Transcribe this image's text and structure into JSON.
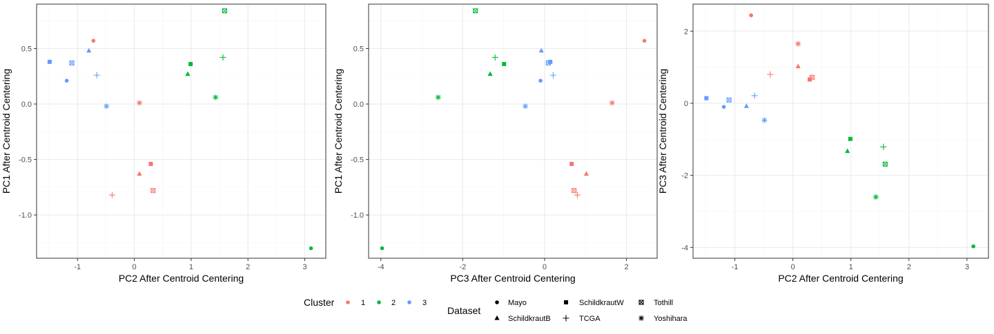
{
  "colors": {
    "cluster_1": "#F8766D",
    "cluster_2": "#00BA38",
    "cluster_3": "#619CFF",
    "grid_major": "#EBEBEB",
    "grid_minor": "#F5F5F5",
    "panel_border": "#333333",
    "axis_text": "#4D4D4D"
  },
  "chart_data": [
    {
      "type": "scatter",
      "title": "",
      "xlabel": "PC2 After Centroid Centering",
      "ylabel": "PC1 After Centroid Centering",
      "xlim": [
        -1.72,
        3.37
      ],
      "ylim": [
        -1.39,
        0.9
      ],
      "xticks": [
        -1,
        0,
        1,
        2,
        3
      ],
      "xtick_labels": [
        "-1",
        "0",
        "1",
        "2",
        "3"
      ],
      "yticks": [
        -1.0,
        -0.5,
        0.0,
        0.5
      ],
      "ytick_labels": [
        "-1.0",
        "-0.5",
        "0.0",
        "0.5"
      ],
      "grid": true,
      "points": [
        {
          "x": -0.72,
          "y": 0.57,
          "cluster": "1",
          "dataset": "Mayo"
        },
        {
          "x": 0.09,
          "y": -0.63,
          "cluster": "1",
          "dataset": "SchildkrautB"
        },
        {
          "x": 0.29,
          "y": -0.54,
          "cluster": "1",
          "dataset": "SchildkrautW"
        },
        {
          "x": -0.39,
          "y": -0.82,
          "cluster": "1",
          "dataset": "TCGA"
        },
        {
          "x": 0.33,
          "y": -0.78,
          "cluster": "1",
          "dataset": "Tothill"
        },
        {
          "x": 0.09,
          "y": 0.01,
          "cluster": "1",
          "dataset": "Yoshihara"
        },
        {
          "x": 3.11,
          "y": -1.3,
          "cluster": "2",
          "dataset": "Mayo"
        },
        {
          "x": 0.94,
          "y": 0.27,
          "cluster": "2",
          "dataset": "SchildkrautB"
        },
        {
          "x": 0.99,
          "y": 0.36,
          "cluster": "2",
          "dataset": "SchildkrautW"
        },
        {
          "x": 1.56,
          "y": 0.42,
          "cluster": "2",
          "dataset": "TCGA"
        },
        {
          "x": 1.59,
          "y": 0.84,
          "cluster": "2",
          "dataset": "Tothill"
        },
        {
          "x": 1.43,
          "y": 0.06,
          "cluster": "2",
          "dataset": "Yoshihara"
        },
        {
          "x": -1.19,
          "y": 0.21,
          "cluster": "3",
          "dataset": "Mayo"
        },
        {
          "x": -0.8,
          "y": 0.48,
          "cluster": "3",
          "dataset": "SchildkrautB"
        },
        {
          "x": -1.49,
          "y": 0.38,
          "cluster": "3",
          "dataset": "SchildkrautW"
        },
        {
          "x": -0.66,
          "y": 0.26,
          "cluster": "3",
          "dataset": "TCGA"
        },
        {
          "x": -1.1,
          "y": 0.37,
          "cluster": "3",
          "dataset": "Tothill"
        },
        {
          "x": -0.49,
          "y": -0.02,
          "cluster": "3",
          "dataset": "Yoshihara"
        }
      ]
    },
    {
      "type": "scatter",
      "title": "",
      "xlabel": "PC3 After Centroid Centering",
      "ylabel": "PC1 After Centroid Centering",
      "xlim": [
        -4.3,
        2.75
      ],
      "ylim": [
        -1.39,
        0.9
      ],
      "xticks": [
        -4,
        -2,
        0,
        2
      ],
      "xtick_labels": [
        "-4",
        "-2",
        "0",
        "2"
      ],
      "yticks": [
        -1.0,
        -0.5,
        0.0,
        0.5
      ],
      "ytick_labels": [
        "-1.0",
        "-0.5",
        "0.0",
        "0.5"
      ],
      "grid": true,
      "points": [
        {
          "x": 2.44,
          "y": 0.57,
          "cluster": "1",
          "dataset": "Mayo"
        },
        {
          "x": 1.02,
          "y": -0.63,
          "cluster": "1",
          "dataset": "SchildkrautB"
        },
        {
          "x": 0.66,
          "y": -0.54,
          "cluster": "1",
          "dataset": "SchildkrautW"
        },
        {
          "x": 0.8,
          "y": -0.82,
          "cluster": "1",
          "dataset": "TCGA"
        },
        {
          "x": 0.72,
          "y": -0.78,
          "cluster": "1",
          "dataset": "Tothill"
        },
        {
          "x": 1.65,
          "y": 0.01,
          "cluster": "1",
          "dataset": "Yoshihara"
        },
        {
          "x": -3.97,
          "y": -1.3,
          "cluster": "2",
          "dataset": "Mayo"
        },
        {
          "x": -1.33,
          "y": 0.27,
          "cluster": "2",
          "dataset": "SchildkrautB"
        },
        {
          "x": -0.99,
          "y": 0.36,
          "cluster": "2",
          "dataset": "SchildkrautW"
        },
        {
          "x": -1.21,
          "y": 0.42,
          "cluster": "2",
          "dataset": "TCGA"
        },
        {
          "x": -1.69,
          "y": 0.84,
          "cluster": "2",
          "dataset": "Tothill"
        },
        {
          "x": -2.6,
          "y": 0.06,
          "cluster": "2",
          "dataset": "Yoshihara"
        },
        {
          "x": -0.1,
          "y": 0.21,
          "cluster": "3",
          "dataset": "Mayo"
        },
        {
          "x": -0.08,
          "y": 0.48,
          "cluster": "3",
          "dataset": "SchildkrautB"
        },
        {
          "x": 0.14,
          "y": 0.38,
          "cluster": "3",
          "dataset": "SchildkrautW"
        },
        {
          "x": 0.21,
          "y": 0.26,
          "cluster": "3",
          "dataset": "TCGA"
        },
        {
          "x": 0.09,
          "y": 0.37,
          "cluster": "3",
          "dataset": "Tothill"
        },
        {
          "x": -0.47,
          "y": -0.02,
          "cluster": "3",
          "dataset": "Yoshihara"
        }
      ]
    },
    {
      "type": "scatter",
      "title": "",
      "xlabel": "PC2 After Centroid Centering",
      "ylabel": "PC3 After Centroid Centering",
      "xlim": [
        -1.72,
        3.37
      ],
      "ylim": [
        -4.3,
        2.75
      ],
      "xticks": [
        -1,
        0,
        1,
        2,
        3
      ],
      "xtick_labels": [
        "-1",
        "0",
        "1",
        "2",
        "3"
      ],
      "yticks": [
        -4,
        -2,
        0,
        2
      ],
      "ytick_labels": [
        "-4",
        "-2",
        "0",
        "2"
      ],
      "grid": true,
      "points": [
        {
          "x": -0.72,
          "y": 2.44,
          "cluster": "1",
          "dataset": "Mayo"
        },
        {
          "x": 0.09,
          "y": 1.02,
          "cluster": "1",
          "dataset": "SchildkrautB"
        },
        {
          "x": 0.29,
          "y": 0.66,
          "cluster": "1",
          "dataset": "SchildkrautW"
        },
        {
          "x": -0.39,
          "y": 0.8,
          "cluster": "1",
          "dataset": "TCGA"
        },
        {
          "x": 0.33,
          "y": 0.72,
          "cluster": "1",
          "dataset": "Tothill"
        },
        {
          "x": 0.09,
          "y": 1.65,
          "cluster": "1",
          "dataset": "Yoshihara"
        },
        {
          "x": 3.11,
          "y": -3.97,
          "cluster": "2",
          "dataset": "Mayo"
        },
        {
          "x": 0.94,
          "y": -1.33,
          "cluster": "2",
          "dataset": "SchildkrautB"
        },
        {
          "x": 0.99,
          "y": -0.99,
          "cluster": "2",
          "dataset": "SchildkrautW"
        },
        {
          "x": 1.56,
          "y": -1.21,
          "cluster": "2",
          "dataset": "TCGA"
        },
        {
          "x": 1.59,
          "y": -1.69,
          "cluster": "2",
          "dataset": "Tothill"
        },
        {
          "x": 1.43,
          "y": -2.6,
          "cluster": "2",
          "dataset": "Yoshihara"
        },
        {
          "x": -1.19,
          "y": -0.1,
          "cluster": "3",
          "dataset": "Mayo"
        },
        {
          "x": -0.8,
          "y": -0.08,
          "cluster": "3",
          "dataset": "SchildkrautB"
        },
        {
          "x": -1.49,
          "y": 0.14,
          "cluster": "3",
          "dataset": "SchildkrautW"
        },
        {
          "x": -0.66,
          "y": 0.21,
          "cluster": "3",
          "dataset": "TCGA"
        },
        {
          "x": -1.1,
          "y": 0.09,
          "cluster": "3",
          "dataset": "Tothill"
        },
        {
          "x": -0.49,
          "y": -0.47,
          "cluster": "3",
          "dataset": "Yoshihara"
        }
      ]
    }
  ],
  "legend": {
    "cluster": {
      "title": "Cluster",
      "entries": [
        {
          "label": "1",
          "color": "#F8766D"
        },
        {
          "label": "2",
          "color": "#00BA38"
        },
        {
          "label": "3",
          "color": "#619CFF"
        }
      ]
    },
    "dataset": {
      "title": "Dataset",
      "entries": [
        {
          "label": "Mayo",
          "shape": "circle"
        },
        {
          "label": "SchildkrautB",
          "shape": "triangle"
        },
        {
          "label": "SchildkrautW",
          "shape": "square"
        },
        {
          "label": "TCGA",
          "shape": "plus"
        },
        {
          "label": "Tothill",
          "shape": "boxed-x"
        },
        {
          "label": "Yoshihara",
          "shape": "asterisk"
        }
      ]
    }
  }
}
